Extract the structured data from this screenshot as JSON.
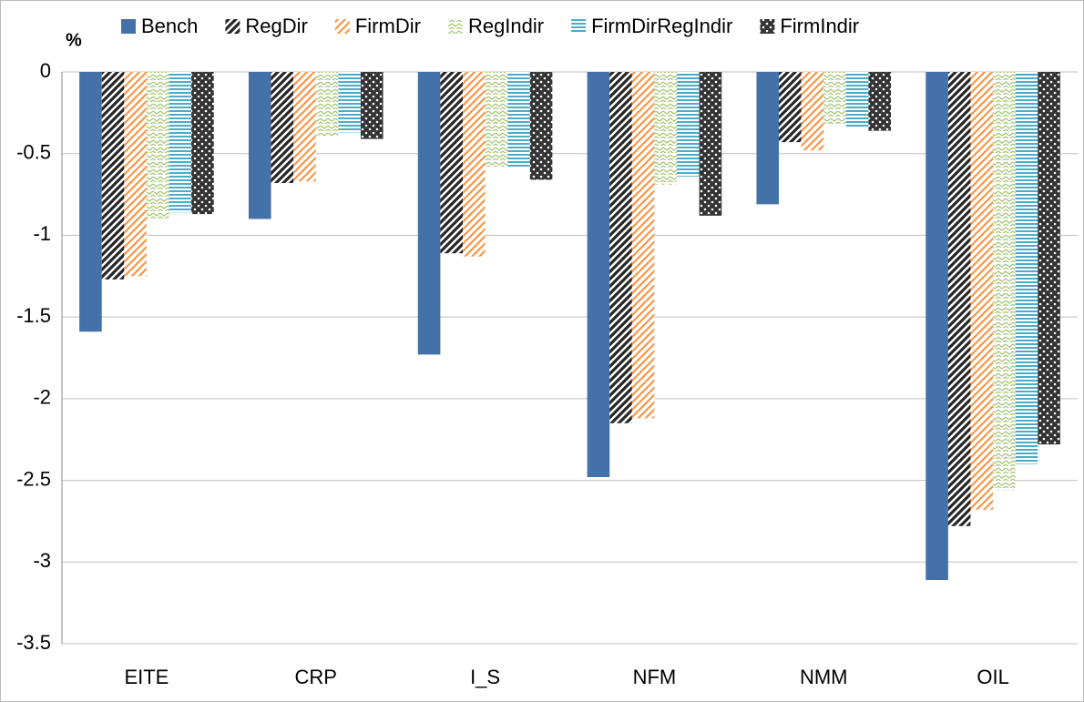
{
  "chart_data": {
    "type": "bar",
    "y_label": "%",
    "categories": [
      "EITE",
      "CRP",
      "I_S",
      "NFM",
      "NMM",
      "OIL"
    ],
    "series": [
      {
        "name": "Bench",
        "color": "#4472a8",
        "pattern": "solid",
        "values": [
          -1.59,
          -0.9,
          -1.73,
          -2.48,
          -0.81,
          -3.11
        ]
      },
      {
        "name": "RegDir",
        "color": "#262626",
        "pattern": "dark-diagonal",
        "values": [
          -1.27,
          -0.68,
          -1.11,
          -2.15,
          -0.43,
          -2.78
        ]
      },
      {
        "name": "FirmDir",
        "color": "#f79646",
        "pattern": "diagonal",
        "values": [
          -1.25,
          -0.67,
          -1.13,
          -2.12,
          -0.48,
          -2.68
        ]
      },
      {
        "name": "RegIndir",
        "color": "#a9c77a",
        "pattern": "zigzag",
        "values": [
          -0.9,
          -0.39,
          -0.58,
          -0.69,
          -0.32,
          -2.56
        ]
      },
      {
        "name": "FirmDirRegIndir",
        "color": "#4bacc6",
        "pattern": "horizontal",
        "values": [
          -0.86,
          -0.37,
          -0.58,
          -0.64,
          -0.34,
          -2.4
        ]
      },
      {
        "name": "FirmIndir",
        "color": "#333333",
        "pattern": "dots",
        "values": [
          -0.87,
          -0.41,
          -0.66,
          -0.88,
          -0.36,
          -2.28
        ]
      }
    ],
    "ylim": [
      -3.5,
      0
    ],
    "yticks": [
      0,
      -0.5,
      -1,
      -1.5,
      -2,
      -2.5,
      -3,
      -3.5
    ],
    "grid": true,
    "legend": "top"
  }
}
